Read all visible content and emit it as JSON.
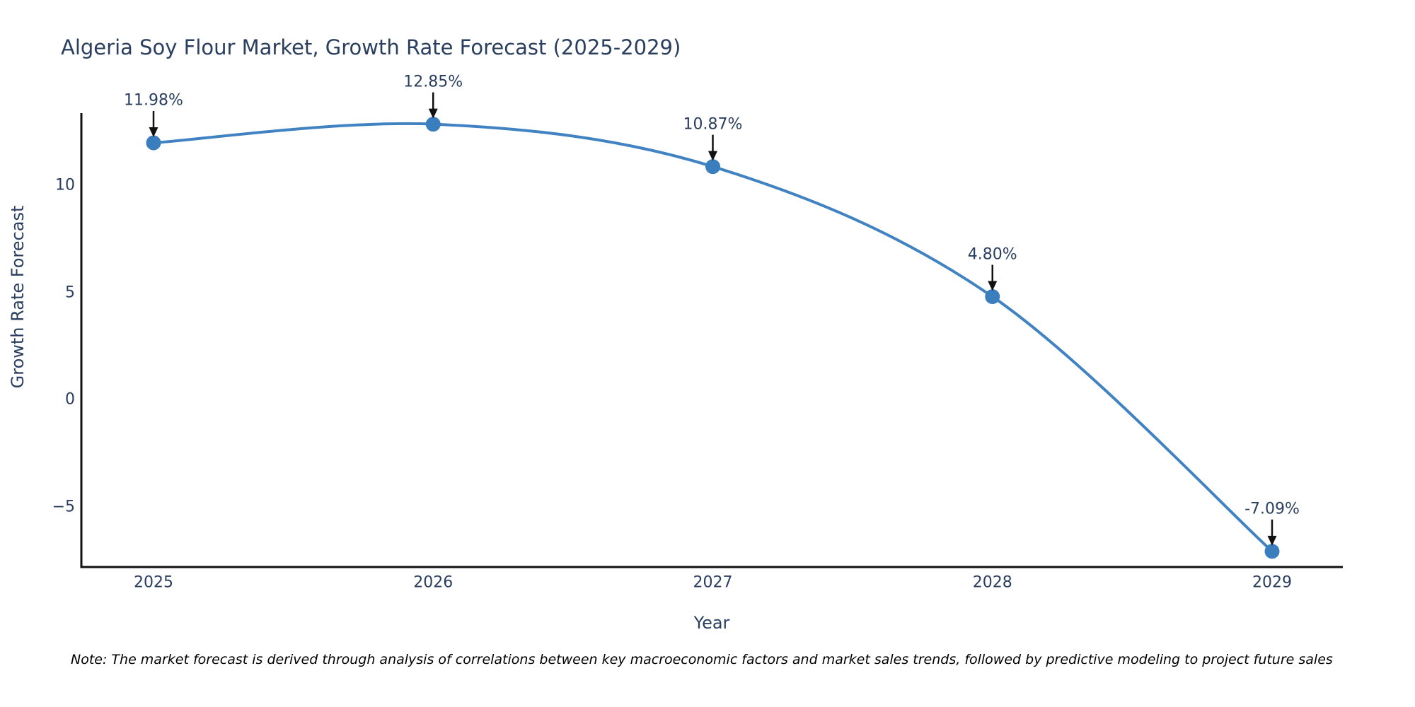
{
  "chart_data": {
    "type": "line",
    "title": "Algeria Soy Flour Market, Growth Rate Forecast (2025-2029)",
    "xlabel": "Year",
    "ylabel": "Growth Rate Forecast",
    "line_shape": "spline",
    "grid": false,
    "legend_position": "none",
    "x": [
      2025,
      2026,
      2027,
      2028,
      2029
    ],
    "series": [
      {
        "name": "Growth Rate Forecast",
        "values": [
          11.98,
          12.85,
          10.87,
          4.8,
          -7.09
        ]
      }
    ],
    "points": [
      {
        "year": "2025",
        "value": 11.98,
        "label": "11.98%"
      },
      {
        "year": "2026",
        "value": 12.85,
        "label": "12.85%"
      },
      {
        "year": "2027",
        "value": 10.87,
        "label": "10.87%"
      },
      {
        "year": "2028",
        "value": 4.8,
        "label": "4.80%"
      },
      {
        "year": "2029",
        "value": -7.09,
        "label": "-7.09%"
      }
    ],
    "yticks": [
      {
        "label": "10",
        "value": 10
      },
      {
        "label": "5",
        "value": 5
      },
      {
        "label": "0",
        "value": 0
      },
      {
        "label": "−5",
        "value": -5
      }
    ],
    "ylim": [
      -7.85,
      13.4
    ],
    "colors": {
      "line": "#4183c2",
      "marker": "#3b7ebd",
      "arrow": "#111111",
      "axis": "#111111",
      "text": "#2a3f5f"
    }
  },
  "footer": {
    "note": "Note: The market forecast is derived through analysis of correlations between key macroeconomic factors and market sales trends, followed by predictive modeling to project future sales"
  }
}
